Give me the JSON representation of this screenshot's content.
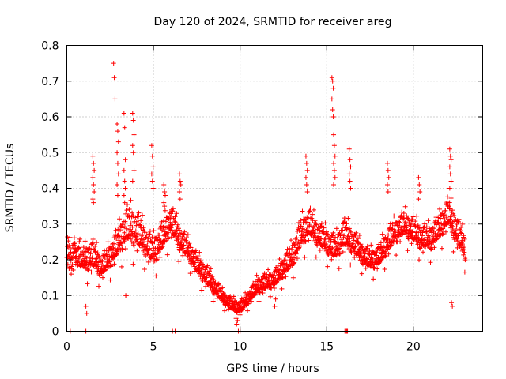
{
  "chart_data": {
    "type": "scatter",
    "title": "Day 120 of 2024, SRMTID for receiver areg",
    "xlabel": "GPS time / hours",
    "ylabel": "SRMTID / TECUs",
    "xlim": [
      0,
      24
    ],
    "ylim": [
      0,
      0.8
    ],
    "xticks": [
      0,
      5,
      10,
      15,
      20
    ],
    "xtick_labels": [
      "0",
      "5",
      "10",
      "15",
      "20"
    ],
    "yticks": [
      0,
      0.1,
      0.2,
      0.3,
      0.4,
      0.5,
      0.6,
      0.7,
      0.8
    ],
    "ytick_labels": [
      "0",
      "0.1",
      "0.2",
      "0.3",
      "0.4",
      "0.5",
      "0.6",
      "0.7",
      "0.8"
    ],
    "grid": true,
    "marker": "+",
    "color": "#ff0000",
    "trend": {
      "hours": [
        0,
        0.5,
        1,
        1.5,
        2,
        2.5,
        3,
        3.5,
        4,
        4.5,
        5,
        5.5,
        6,
        6.5,
        7,
        7.5,
        8,
        8.5,
        9,
        9.5,
        10,
        10.5,
        11,
        11.5,
        12,
        12.5,
        13,
        13.5,
        14,
        14.5,
        15,
        15.5,
        16,
        16.5,
        17,
        17.5,
        18,
        18.5,
        19,
        19.5,
        20,
        20.5,
        21,
        21.5,
        22,
        22.5,
        23
      ],
      "srmtid": [
        0.22,
        0.23,
        0.19,
        0.2,
        0.17,
        0.2,
        0.24,
        0.28,
        0.27,
        0.24,
        0.21,
        0.25,
        0.3,
        0.25,
        0.22,
        0.18,
        0.15,
        0.12,
        0.09,
        0.07,
        0.06,
        0.09,
        0.12,
        0.13,
        0.14,
        0.17,
        0.2,
        0.26,
        0.29,
        0.26,
        0.24,
        0.22,
        0.26,
        0.24,
        0.21,
        0.19,
        0.2,
        0.24,
        0.27,
        0.29,
        0.27,
        0.25,
        0.25,
        0.28,
        0.32,
        0.27,
        0.22
      ],
      "spread": [
        0.07,
        0.07,
        0.06,
        0.07,
        0.05,
        0.06,
        0.07,
        0.09,
        0.09,
        0.07,
        0.07,
        0.07,
        0.07,
        0.06,
        0.05,
        0.05,
        0.05,
        0.04,
        0.03,
        0.03,
        0.03,
        0.03,
        0.04,
        0.04,
        0.04,
        0.05,
        0.06,
        0.07,
        0.07,
        0.06,
        0.06,
        0.06,
        0.07,
        0.06,
        0.05,
        0.05,
        0.05,
        0.06,
        0.06,
        0.06,
        0.06,
        0.06,
        0.06,
        0.06,
        0.07,
        0.07,
        0.06
      ]
    },
    "spikes": [
      {
        "hour": 1.5,
        "values": [
          0.49,
          0.47,
          0.45,
          0.43,
          0.41,
          0.39,
          0.37,
          0.36
        ]
      },
      {
        "hour": 2.7,
        "values": [
          0.75,
          0.71,
          0.65
        ]
      },
      {
        "hour": 2.9,
        "values": [
          0.58,
          0.56,
          0.53,
          0.5,
          0.47,
          0.44,
          0.41,
          0.38
        ]
      },
      {
        "hour": 3.3,
        "values": [
          0.61,
          0.57,
          0.48,
          0.45,
          0.42,
          0.4,
          0.38,
          0.36
        ]
      },
      {
        "hour": 3.8,
        "values": [
          0.61,
          0.59,
          0.55,
          0.52,
          0.5,
          0.45,
          0.42
        ]
      },
      {
        "hour": 4.9,
        "values": [
          0.52,
          0.49,
          0.46,
          0.44,
          0.42,
          0.4
        ]
      },
      {
        "hour": 5.6,
        "values": [
          0.41,
          0.39,
          0.38,
          0.36,
          0.35
        ]
      },
      {
        "hour": 6.5,
        "values": [
          0.44,
          0.42,
          0.41,
          0.39,
          0.37
        ]
      },
      {
        "hour": 13.8,
        "values": [
          0.49,
          0.47,
          0.45,
          0.43,
          0.41,
          0.39
        ]
      },
      {
        "hour": 15.3,
        "values": [
          0.71,
          0.7,
          0.68,
          0.65,
          0.62,
          0.6
        ]
      },
      {
        "hour": 15.4,
        "values": [
          0.55,
          0.52,
          0.49,
          0.47,
          0.45,
          0.43,
          0.41
        ]
      },
      {
        "hour": 16.3,
        "values": [
          0.51,
          0.48,
          0.46,
          0.44,
          0.42,
          0.4
        ]
      },
      {
        "hour": 18.5,
        "values": [
          0.47,
          0.45,
          0.43,
          0.41,
          0.39
        ]
      },
      {
        "hour": 20.3,
        "values": [
          0.43,
          0.41,
          0.39,
          0.37
        ]
      },
      {
        "hour": 22.1,
        "values": [
          0.51,
          0.49,
          0.48,
          0.46,
          0.44,
          0.42,
          0.4
        ]
      }
    ],
    "dips": [
      {
        "hour": 1.1,
        "values": [
          0.07,
          0.05
        ]
      },
      {
        "hour": 3.4,
        "values": [
          0.1,
          0.1
        ]
      },
      {
        "hour": 9.8,
        "values": [
          0.02,
          0.03
        ]
      },
      {
        "hour": 12.0,
        "values": [
          0.07,
          0.09
        ]
      },
      {
        "hour": 22.2,
        "values": [
          0.08,
          0.07
        ]
      }
    ],
    "zero_hours": [
      0.2,
      1.1,
      6.1,
      6.25,
      9.9,
      10.0,
      16.05,
      16.1,
      16.15,
      16.2
    ]
  }
}
